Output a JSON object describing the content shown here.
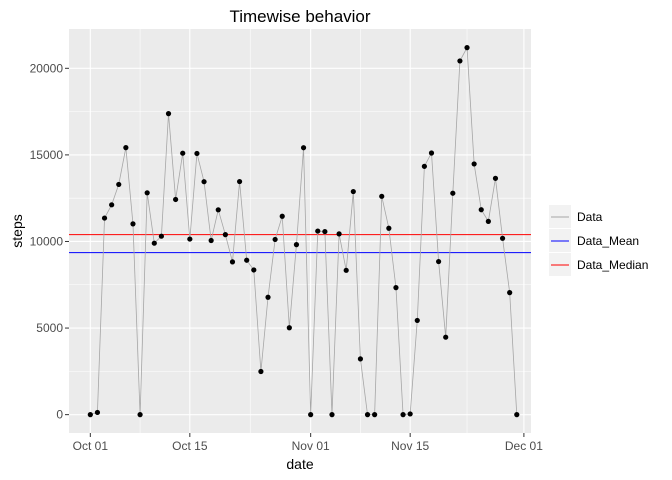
{
  "chart_data": {
    "type": "line",
    "title": "Timewise behavior",
    "xlabel": "date",
    "ylabel": "steps",
    "x_ticks": [
      "Oct 01",
      "Oct 15",
      "Nov 01",
      "Nov 15",
      "Dec 01"
    ],
    "y_ticks": [
      0,
      5000,
      10000,
      15000,
      20000
    ],
    "xlim": [
      "2012-09-28",
      "2012-12-02"
    ],
    "ylim": [
      -1060,
      22270
    ],
    "grid": true,
    "legend_position": "right",
    "series": [
      {
        "name": "Data",
        "color": "#a6a6a6",
        "markers": true,
        "x": [
          "2012-10-01",
          "2012-10-02",
          "2012-10-03",
          "2012-10-04",
          "2012-10-05",
          "2012-10-06",
          "2012-10-07",
          "2012-10-08",
          "2012-10-09",
          "2012-10-10",
          "2012-10-11",
          "2012-10-12",
          "2012-10-13",
          "2012-10-14",
          "2012-10-15",
          "2012-10-16",
          "2012-10-17",
          "2012-10-18",
          "2012-10-19",
          "2012-10-20",
          "2012-10-21",
          "2012-10-22",
          "2012-10-23",
          "2012-10-24",
          "2012-10-25",
          "2012-10-26",
          "2012-10-27",
          "2012-10-28",
          "2012-10-29",
          "2012-10-30",
          "2012-10-31",
          "2012-11-01",
          "2012-11-02",
          "2012-11-03",
          "2012-11-04",
          "2012-11-05",
          "2012-11-06",
          "2012-11-07",
          "2012-11-08",
          "2012-11-09",
          "2012-11-10",
          "2012-11-11",
          "2012-11-12",
          "2012-11-13",
          "2012-11-14",
          "2012-11-15",
          "2012-11-16",
          "2012-11-17",
          "2012-11-18",
          "2012-11-19",
          "2012-11-20",
          "2012-11-21",
          "2012-11-22",
          "2012-11-23",
          "2012-11-24",
          "2012-11-25",
          "2012-11-26",
          "2012-11-27",
          "2012-11-28",
          "2012-11-29",
          "2012-11-30"
        ],
        "y": [
          0,
          126,
          11352,
          12116,
          13294,
          15420,
          11015,
          0,
          12811,
          9900,
          10304,
          17382,
          12426,
          15098,
          10139,
          15084,
          13452,
          10056,
          11829,
          10395,
          8821,
          13460,
          8918,
          8355,
          2492,
          6778,
          10119,
          11458,
          5018,
          9819,
          15414,
          0,
          10600,
          10571,
          0,
          10439,
          8334,
          12883,
          3219,
          0,
          0,
          12608,
          10765,
          7336,
          0,
          41,
          5441,
          14339,
          15110,
          8841,
          4472,
          12787,
          20427,
          21194,
          14478,
          11834,
          11162,
          13646,
          10183,
          7047,
          0
        ]
      },
      {
        "name": "Data_Mean",
        "color": "#0000ff",
        "value": 9354
      },
      {
        "name": "Data_Median",
        "color": "#ff0000",
        "value": 10395
      }
    ]
  }
}
